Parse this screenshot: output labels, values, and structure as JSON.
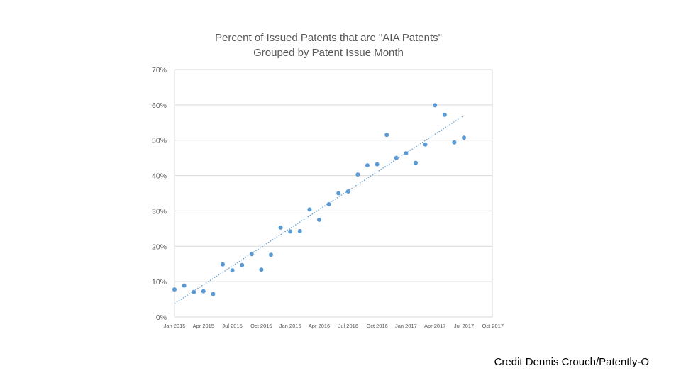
{
  "chart_data": {
    "type": "scatter",
    "title_lines": [
      "Percent of Issued Patents that are \"AIA Patents\"",
      "Grouped by Patent Issue Month"
    ],
    "xlabel": "",
    "ylabel": "",
    "ylim": [
      0,
      70
    ],
    "y_ticks": [
      "0%",
      "10%",
      "20%",
      "30%",
      "40%",
      "50%",
      "60%",
      "70%"
    ],
    "x_ticks": [
      "Jan 2015",
      "Apr 2015",
      "Jul 2015",
      "Oct 2015",
      "Jan 2016",
      "Apr 2016",
      "Jul 2016",
      "Oct 2016",
      "Jan 2017",
      "Apr 2017",
      "Jul 2017",
      "Oct 2017"
    ],
    "grid": true,
    "legend": "none",
    "series": [
      {
        "x": [
          "2015-01",
          "2015-02",
          "2015-03",
          "2015-04",
          "2015-05",
          "2015-06",
          "2015-07",
          "2015-08",
          "2015-09",
          "2015-10",
          "2015-11",
          "2015-12",
          "2016-01",
          "2016-02",
          "2016-03",
          "2016-04",
          "2016-05",
          "2016-06",
          "2016-07",
          "2016-08",
          "2016-09",
          "2016-10",
          "2016-11",
          "2016-12",
          "2017-01",
          "2017-02",
          "2017-03",
          "2017-04",
          "2017-05",
          "2017-06",
          "2017-07"
        ],
        "y": [
          7.8,
          8.9,
          7.1,
          7.3,
          6.5,
          14.9,
          13.2,
          14.7,
          17.8,
          13.4,
          17.6,
          25.3,
          24.2,
          24.3,
          30.4,
          27.5,
          31.9,
          35.0,
          35.5,
          40.3,
          42.9,
          43.2,
          51.5,
          45.0,
          46.3,
          43.6,
          48.8,
          59.9,
          57.2,
          49.4,
          50.7
        ]
      }
    ],
    "trendline": {
      "type": "linear",
      "y_start": 3.8,
      "y_end": 57.0
    },
    "colors": {
      "points": "#5B9BD5",
      "trend": "#5B9BD5",
      "grid": "#d9d9d9",
      "text": "#595959"
    }
  },
  "credit": "Credit Dennis Crouch/Patently-O"
}
